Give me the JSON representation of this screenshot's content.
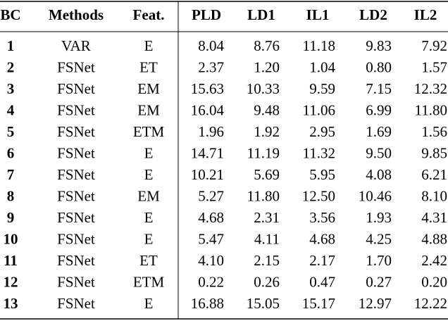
{
  "table": {
    "headers": [
      "BC",
      "Methods",
      "Feat.",
      "PLD",
      "LD1",
      "IL1",
      "LD2",
      "IL2"
    ],
    "rows": [
      [
        "1",
        "VAR",
        "E",
        "8.04",
        "8.76",
        "11.18",
        "9.83",
        "7.92"
      ],
      [
        "2",
        "FSNet",
        "ET",
        "2.37",
        "1.20",
        "1.04",
        "0.80",
        "1.57"
      ],
      [
        "3",
        "FSNet",
        "EM",
        "15.63",
        "10.33",
        "9.59",
        "7.15",
        "12.32"
      ],
      [
        "4",
        "FSNet",
        "EM",
        "16.04",
        "9.48",
        "11.06",
        "6.99",
        "11.80"
      ],
      [
        "5",
        "FSNet",
        "ETM",
        "1.96",
        "1.92",
        "2.95",
        "1.69",
        "1.56"
      ],
      [
        "6",
        "FSNet",
        "E",
        "14.71",
        "11.19",
        "11.32",
        "9.50",
        "9.85"
      ],
      [
        "7",
        "FSNet",
        "E",
        "10.21",
        "5.69",
        "5.95",
        "4.08",
        "6.21"
      ],
      [
        "8",
        "FSNet",
        "EM",
        "5.27",
        "11.80",
        "12.50",
        "10.46",
        "8.10"
      ],
      [
        "9",
        "FSNet",
        "E",
        "4.68",
        "2.31",
        "3.56",
        "1.93",
        "4.31"
      ],
      [
        "10",
        "FSNet",
        "E",
        "5.47",
        "4.11",
        "4.68",
        "4.25",
        "4.88"
      ],
      [
        "11",
        "FSNet",
        "ET",
        "4.10",
        "2.15",
        "2.17",
        "1.70",
        "2.42"
      ],
      [
        "12",
        "FSNet",
        "ETM",
        "0.22",
        "0.26",
        "0.47",
        "0.27",
        "0.20"
      ],
      [
        "13",
        "FSNet",
        "E",
        "16.88",
        "15.05",
        "15.17",
        "12.97",
        "12.22"
      ]
    ]
  }
}
